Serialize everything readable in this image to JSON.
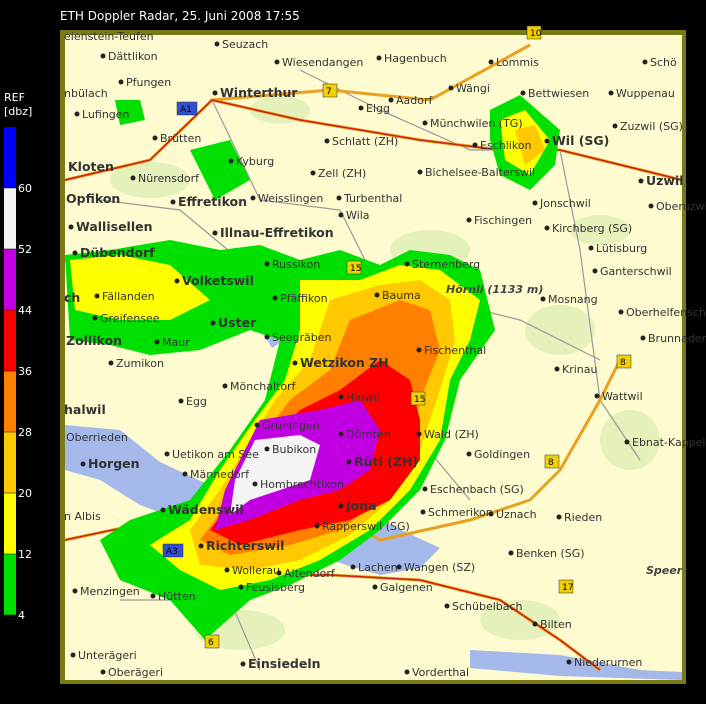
{
  "title": "ETH Doppler Radar, 25. Juni 2008 17:55",
  "legend": {
    "title": "REF",
    "unit": "[dbz]",
    "range": [
      4,
      68
    ],
    "ticks": [
      4,
      12,
      20,
      28,
      36,
      44,
      52,
      60
    ],
    "colors": [
      "#00e000",
      "#ffff00",
      "#ffc800",
      "#ff8000",
      "#ff0000",
      "#c000e0",
      "#f4f4f4",
      "#0000ff"
    ]
  },
  "cities": [
    "Winterthur",
    "Wil (SG)",
    "Kloten",
    "Uzwil",
    "Opfikon",
    "Effretikon",
    "Wallisellen",
    "Illnau-Effretikon",
    "Dübendorf",
    "Volketswil",
    "ch",
    "Uster",
    "Zollikon",
    "Wetzikon ZH",
    "Rüti (ZH)",
    "Horgen",
    "Jona",
    "Wädenswil",
    "Richterswil",
    "Einsiedeln",
    "halwil"
  ],
  "places": [
    "eienstein-Teufen",
    "Seuzach",
    "Wiesendangen",
    "Hagenbuch",
    "Lommis",
    "Schö",
    "Dättlikon",
    "Pfungen",
    "Aadorf",
    "Wängi",
    "Bettwiesen",
    "Wuppenau",
    "nbülach",
    "Lufingen",
    "Elgg",
    "Münchwilen (TG)",
    "Zuzwil (SG)",
    "Brütten",
    "Schlatt (ZH)",
    "Eschlikon",
    "Kyburg",
    "Nürensdorf",
    "Zell (ZH)",
    "Bichelsee-Balterswil",
    "Weisslingen",
    "Turbenthal",
    "Jonschwil",
    "Oberuzwil",
    "Wila",
    "Fischingen",
    "Kirchberg (SG)",
    "Lütisburg",
    "Russikon",
    "Sternenberg",
    "Ganterschwil",
    "Bauma",
    "Fällanden",
    "Pfäffikon",
    "Mosnang",
    "Greifensee",
    "Oberhelfenschwil",
    "Seegräben",
    "Maur",
    "Fischenthal",
    "Brunnadern",
    "Zumikon",
    "Krinau",
    "Mönchaltorf",
    "Hinwil",
    "Wattwil",
    "Egg",
    "Oberrieden",
    "Grüningen",
    "Dürnten",
    "Wald (ZH)",
    "Ebnat-Kappel",
    "Bubikon",
    "Uetikon am See",
    "Goldingen",
    "Männedorf",
    "Hombrechtikon",
    "Eschenbach (SG)",
    "Schmerikon",
    "Uznach",
    "Rieden",
    "n Albis",
    "Rapperswil (SG)",
    "Benken (SG)",
    "Wollerau",
    "Altendorf",
    "Lachen",
    "Wangen (SZ)",
    "Galgenen",
    "Feusisberg",
    "Menzingen",
    "Hütten",
    "Schübelbach",
    "Bilten",
    "Unterägeri",
    "Niederurnen",
    "Oberägeri",
    "Vorderthal"
  ],
  "peaks": [
    "Hörnli (1133 m)",
    "Speer"
  ],
  "road_signs": [
    "10",
    "A1",
    "7",
    "15",
    "15",
    "8",
    "8",
    "A3",
    "17",
    "6"
  ]
}
